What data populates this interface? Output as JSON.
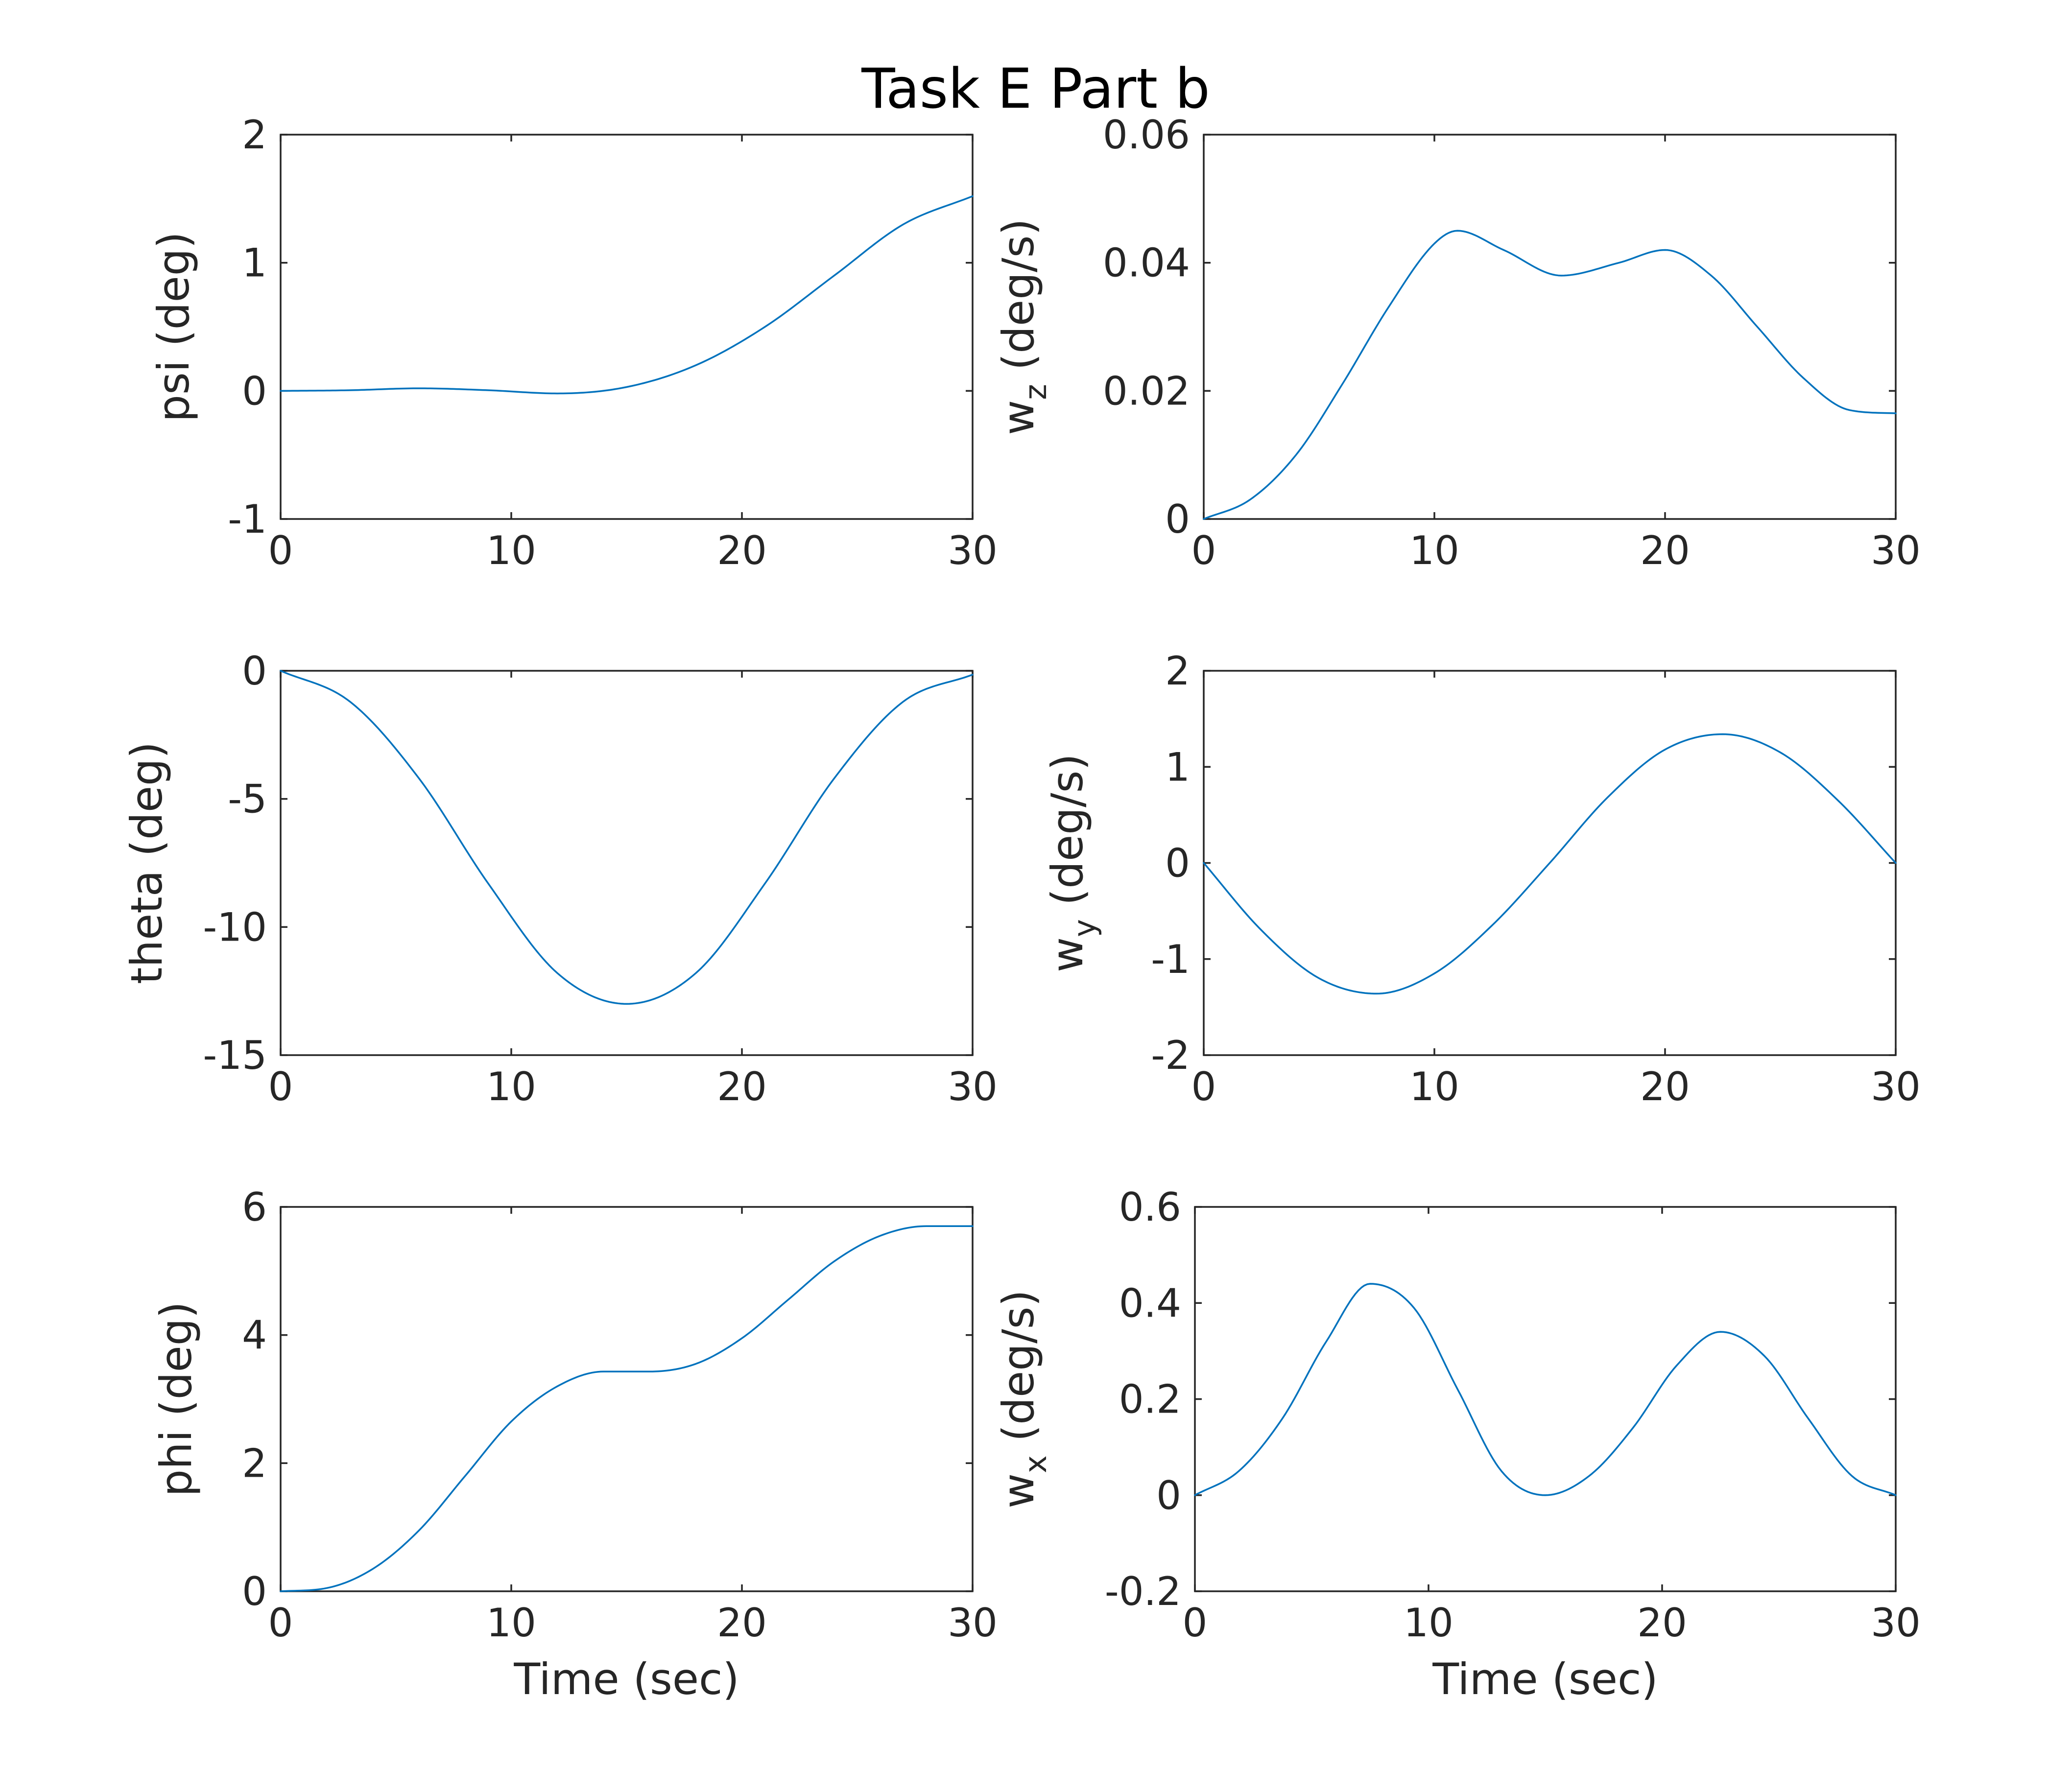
{
  "figure": {
    "title": "Task E Part b",
    "line_color": "#0072bd",
    "axis_color": "#262626"
  },
  "chart_data": [
    {
      "type": "line",
      "ylabel": "psi (deg)",
      "ylabel_main": "psi (deg)",
      "ylabel_sub": "",
      "ylabel_tail": "",
      "xlabel": "",
      "xlim": [
        0,
        30
      ],
      "ylim": [
        -1,
        2
      ],
      "xticks": [
        "0",
        "10",
        "20",
        "30"
      ],
      "yticks": [
        "-1",
        "0",
        "1",
        "2"
      ],
      "x": [
        0,
        3,
        6,
        9,
        12,
        15,
        18,
        21,
        24,
        27,
        30
      ],
      "y": [
        0,
        0.005,
        0.02,
        0.005,
        -0.02,
        0.03,
        0.2,
        0.5,
        0.9,
        1.3,
        1.52
      ]
    },
    {
      "type": "line",
      "ylabel": "w_z (deg/s)",
      "ylabel_main": "w",
      "ylabel_sub": "z",
      "ylabel_tail": " (deg/s)",
      "xlabel": "",
      "xlim": [
        0,
        30
      ],
      "ylim": [
        0,
        0.06
      ],
      "xticks": [
        "0",
        "10",
        "20",
        "30"
      ],
      "yticks": [
        "0",
        "0.02",
        "0.04",
        "0.06"
      ],
      "x": [
        0,
        2,
        4,
        6,
        8,
        10,
        11,
        13,
        15.5,
        18,
        20,
        22,
        24,
        26,
        28,
        30
      ],
      "y": [
        0,
        0.003,
        0.01,
        0.021,
        0.033,
        0.043,
        0.045,
        0.042,
        0.038,
        0.04,
        0.042,
        0.038,
        0.03,
        0.022,
        0.017,
        0.0165
      ]
    },
    {
      "type": "line",
      "ylabel": "theta (deg)",
      "ylabel_main": "theta (deg)",
      "ylabel_sub": "",
      "ylabel_tail": "",
      "xlabel": "",
      "xlim": [
        0,
        30
      ],
      "ylim": [
        -15,
        0
      ],
      "xticks": [
        "0",
        "10",
        "20",
        "30"
      ],
      "yticks": [
        "-15",
        "-10",
        "-5",
        "0"
      ],
      "x": [
        0,
        3,
        6,
        9,
        12,
        15,
        18,
        21,
        24,
        27,
        30
      ],
      "y": [
        0,
        -1.2,
        -4.2,
        -8.3,
        -11.8,
        -13,
        -11.8,
        -8.3,
        -4.2,
        -1.2,
        -0.15
      ]
    },
    {
      "type": "line",
      "ylabel": "w_y (deg/s)",
      "ylabel_main": "w",
      "ylabel_sub": "y",
      "ylabel_tail": " (deg/s)",
      "xlabel": "",
      "xlim": [
        0,
        30
      ],
      "ylim": [
        -2,
        2
      ],
      "xticks": [
        "0",
        "10",
        "20",
        "30"
      ],
      "yticks": [
        "-2",
        "-1",
        "0",
        "1",
        "2"
      ],
      "x": [
        0,
        2.5,
        5,
        7.5,
        10,
        12.5,
        15,
        17.5,
        20,
        22.5,
        25,
        27.5,
        30
      ],
      "y": [
        0,
        -0.7,
        -1.2,
        -1.36,
        -1.15,
        -0.65,
        0,
        0.68,
        1.18,
        1.34,
        1.15,
        0.65,
        0
      ]
    },
    {
      "type": "line",
      "ylabel": "phi (deg)",
      "ylabel_main": "phi (deg)",
      "ylabel_sub": "",
      "ylabel_tail": "",
      "xlabel": "Time (sec)",
      "xlim": [
        0,
        30
      ],
      "ylim": [
        0,
        6
      ],
      "xticks": [
        "0",
        "10",
        "20",
        "30"
      ],
      "yticks": [
        "0",
        "2",
        "4",
        "6"
      ],
      "x": [
        0,
        2,
        4,
        6,
        8,
        10,
        12,
        14,
        16,
        18,
        20,
        22,
        24,
        26,
        28,
        30
      ],
      "y": [
        0,
        0.05,
        0.35,
        0.95,
        1.8,
        2.65,
        3.2,
        3.43,
        3.43,
        3.55,
        3.95,
        4.55,
        5.15,
        5.55,
        5.7,
        5.7
      ]
    },
    {
      "type": "line",
      "ylabel": "w_x (deg/s)",
      "ylabel_main": "w",
      "ylabel_sub": "x",
      "ylabel_tail": " (deg/s)",
      "xlabel": "Time (sec)",
      "xlim": [
        0,
        30
      ],
      "ylim": [
        -0.2,
        0.6
      ],
      "xticks": [
        "0",
        "10",
        "20",
        "30"
      ],
      "yticks": [
        "-0.2",
        "0",
        "0.2",
        "0.4",
        "0.6"
      ],
      "x": [
        0,
        1.875,
        3.75,
        5.625,
        7.5,
        9.375,
        11.25,
        13.125,
        15,
        16.875,
        18.75,
        20.625,
        22.5,
        24.375,
        26.25,
        28.125,
        30
      ],
      "y": [
        0,
        0.05,
        0.16,
        0.32,
        0.44,
        0.39,
        0.22,
        0.05,
        0,
        0.04,
        0.14,
        0.27,
        0.34,
        0.29,
        0.16,
        0.04,
        0
      ]
    }
  ]
}
